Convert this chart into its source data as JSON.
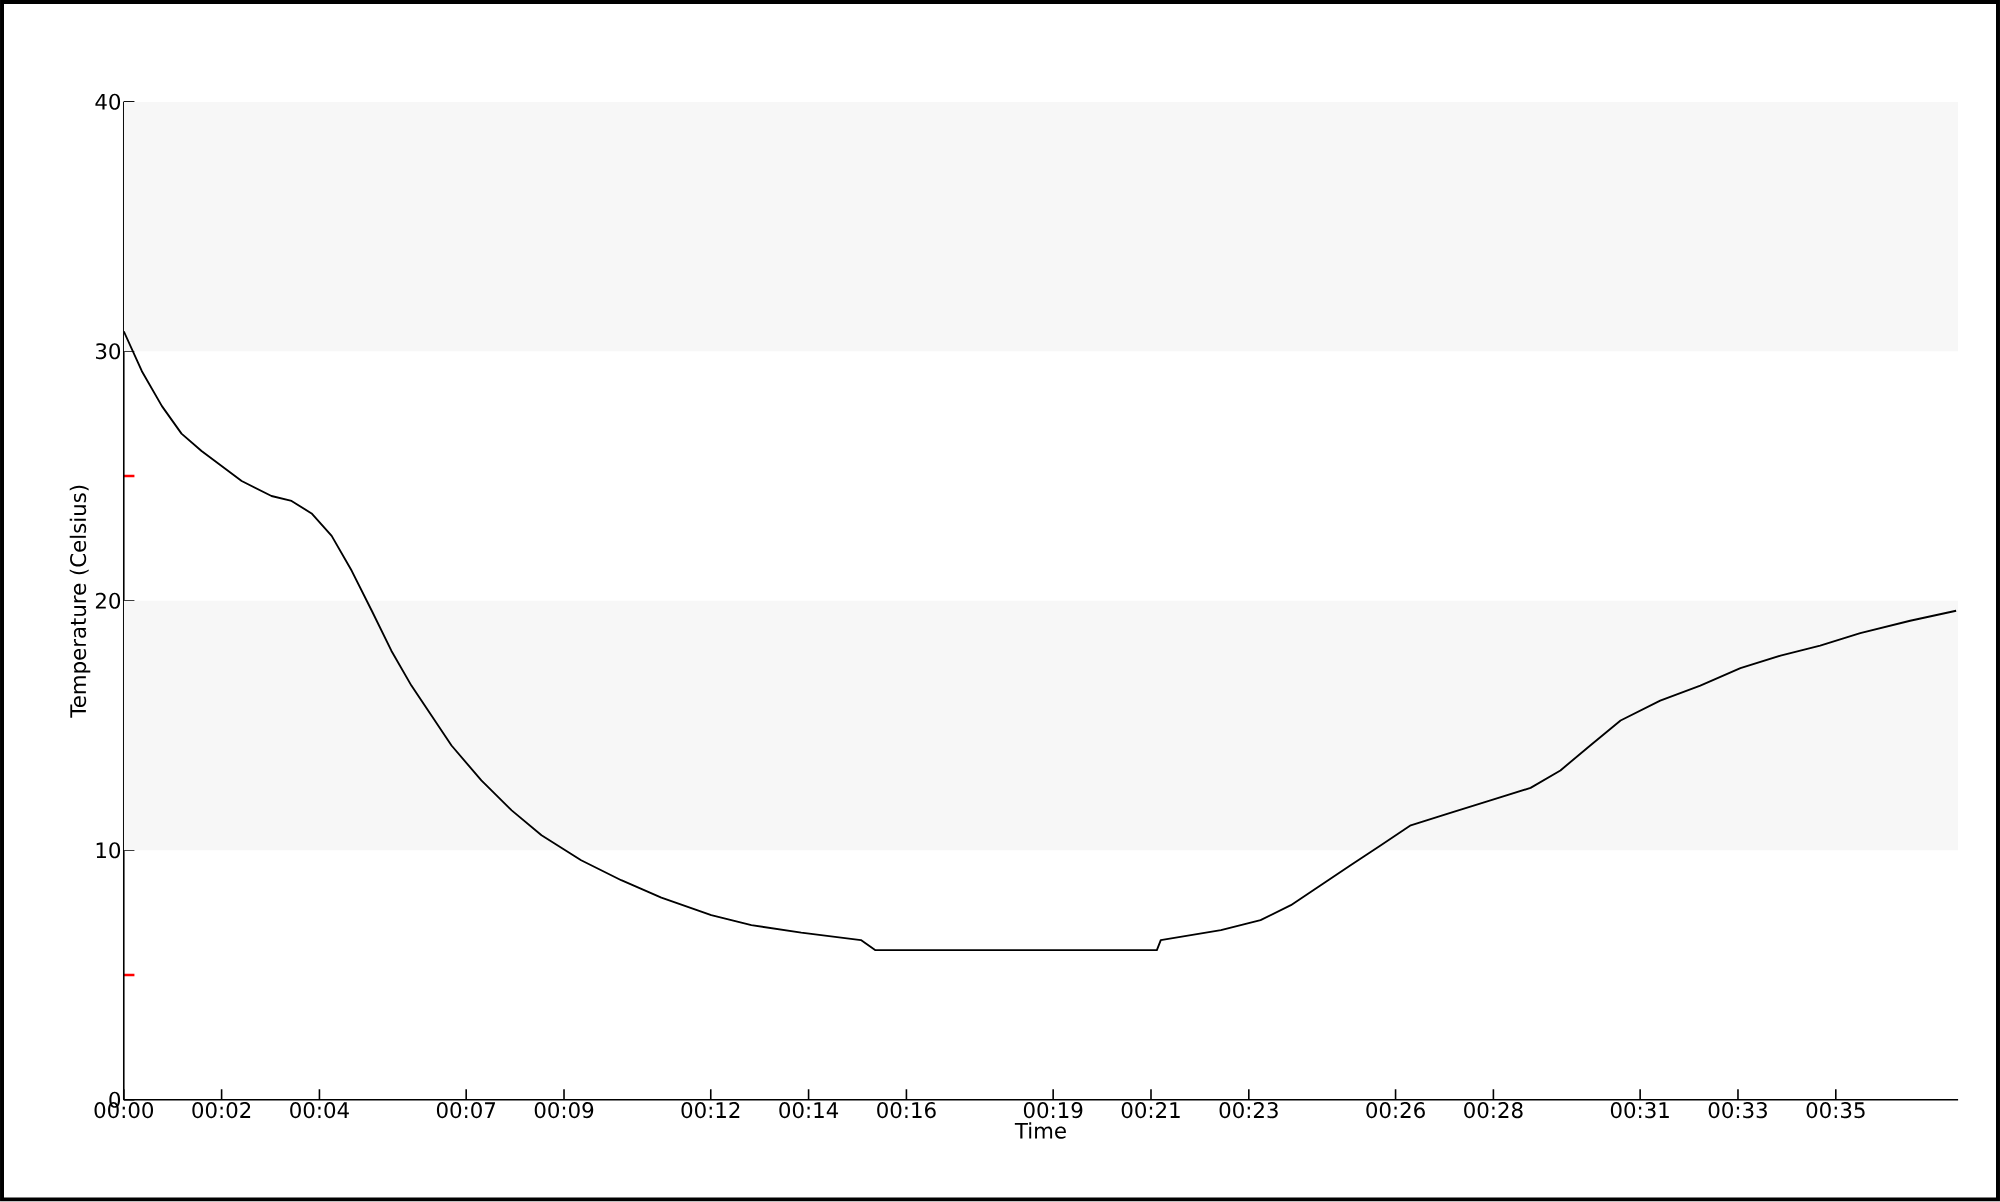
{
  "chart_data": {
    "type": "line",
    "xlabel": "Time",
    "ylabel": "Temperature (Celsius)",
    "x": [
      0,
      0.37,
      0.78,
      1.18,
      1.59,
      2.0,
      2.41,
      3.02,
      3.43,
      3.84,
      4.25,
      4.66,
      5.07,
      5.47,
      5.88,
      6.29,
      6.7,
      7.31,
      7.93,
      8.54,
      9.35,
      10.17,
      10.99,
      12.01,
      12.83,
      13.85,
      15.07,
      15.36,
      17.93,
      21.12,
      21.2,
      22.43,
      23.24,
      23.86,
      24.47,
      25.08,
      25.7,
      26.31,
      27.12,
      27.94,
      28.76,
      29.37,
      29.98,
      30.6,
      31.41,
      32.23,
      33.05,
      33.87,
      34.68,
      35.5,
      36.52,
      37.46
    ],
    "series": [
      {
        "color": "#000000",
        "values": [
          30.8,
          29.2,
          27.8,
          26.7,
          26.0,
          25.4,
          24.8,
          24.2,
          24.0,
          23.5,
          22.6,
          21.2,
          19.6,
          18.0,
          16.6,
          15.4,
          14.2,
          12.8,
          11.6,
          10.6,
          9.6,
          8.8,
          8.1,
          7.4,
          7.0,
          6.7,
          6.4,
          6.0,
          6.0,
          6.0,
          6.4,
          6.8,
          7.2,
          7.8,
          8.6,
          9.4,
          10.2,
          11.0,
          11.5,
          12.0,
          12.5,
          13.2,
          14.2,
          15.2,
          16.0,
          16.6,
          17.3,
          17.8,
          18.2,
          18.7,
          19.2,
          19.6
        ]
      }
    ],
    "xlim": [
      0,
      37.5
    ],
    "xticks": [
      {
        "value": 0,
        "label": "00:00"
      },
      {
        "value": 2,
        "label": "00:02"
      },
      {
        "value": 4,
        "label": "00:04"
      },
      {
        "value": 7,
        "label": "00:07"
      },
      {
        "value": 9,
        "label": "00:09"
      },
      {
        "value": 12,
        "label": "00:12"
      },
      {
        "value": 14,
        "label": "00:14"
      },
      {
        "value": 16,
        "label": "00:16"
      },
      {
        "value": 19,
        "label": "00:19"
      },
      {
        "value": 21,
        "label": "00:21"
      },
      {
        "value": 23,
        "label": "00:23"
      },
      {
        "value": 26,
        "label": "00:26"
      },
      {
        "value": 28,
        "label": "00:28"
      },
      {
        "value": 31,
        "label": "00:31"
      },
      {
        "value": 33,
        "label": "00:33"
      },
      {
        "value": 35,
        "label": "00:35"
      }
    ],
    "ylim": [
      0,
      40
    ],
    "yticks": [
      0,
      {
        "value": 5,
        "label": null
      },
      10,
      {
        "value": 15,
        "label": null
      },
      20,
      {
        "value": 25,
        "label": null
      },
      30,
      {
        "value": 35,
        "label": null
      },
      40
    ],
    "bands": [
      {
        "axis": "y",
        "from": 10,
        "to": 20,
        "color": "#f7f7f7"
      },
      {
        "axis": "y",
        "from": 30,
        "to": 40,
        "color": "#f7f7f7"
      }
    ],
    "line_style": "solid",
    "marker": "none",
    "grid": false
  }
}
